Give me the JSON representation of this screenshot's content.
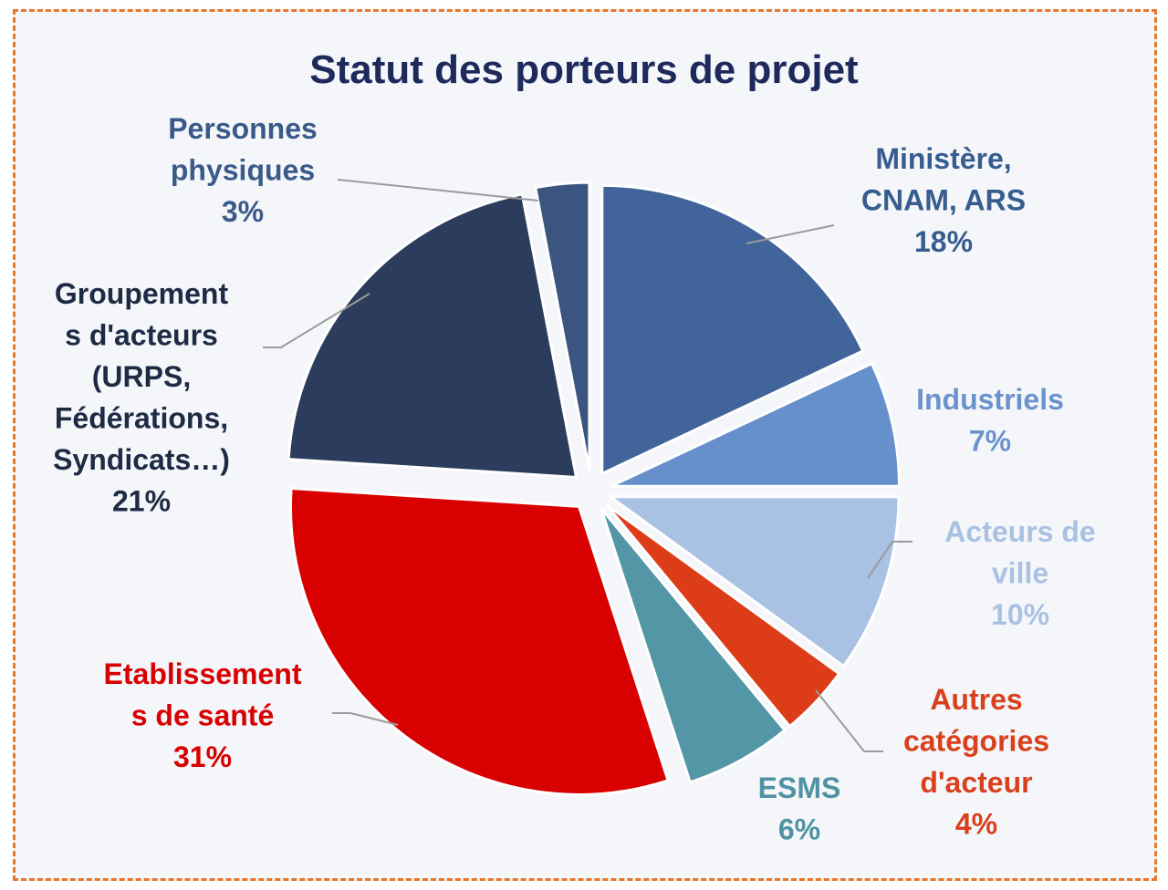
{
  "chart_data": {
    "type": "pie",
    "title": "Statut des porteurs de projet",
    "slices": [
      {
        "label_lines": [
          "Ministère,",
          "CNAM, ARS"
        ],
        "percent_label": "18%",
        "value": 18,
        "color": "#41649a",
        "label_color": "#375d8f"
      },
      {
        "label_lines": [
          "Industriels"
        ],
        "percent_label": "7%",
        "value": 7,
        "color": "#6690cc",
        "label_color": "#6a93cd"
      },
      {
        "label_lines": [
          "Acteurs de",
          "ville"
        ],
        "percent_label": "10%",
        "value": 10,
        "color": "#a9c2e3",
        "label_color": "#a9c2e3"
      },
      {
        "label_lines": [
          "Autres",
          "catégories",
          "d'acteur"
        ],
        "percent_label": "4%",
        "value": 4,
        "color": "#dd3c18",
        "label_color": "#d9401b"
      },
      {
        "label_lines": [
          "ESMS"
        ],
        "percent_label": "6%",
        "value": 6,
        "color": "#5396a6",
        "label_color": "#4f93a3"
      },
      {
        "label_lines": [
          "Etablissement",
          "s de santé"
        ],
        "percent_label": "31%",
        "value": 31,
        "color": "#d80000",
        "label_color": "#d80000"
      },
      {
        "label_lines": [
          "Groupement",
          "s d'acteurs",
          "(URPS,",
          "Fédérations,",
          "Syndicats…)"
        ],
        "percent_label": "21%",
        "value": 21,
        "color": "#2c3c5c",
        "label_color": "#1e2b45"
      },
      {
        "label_lines": [
          "Personnes",
          "physiques"
        ],
        "percent_label": "3%",
        "value": 3,
        "color": "#3b5580",
        "label_color": "#3a5a8a"
      }
    ]
  },
  "colors": {
    "border": "#e8772a",
    "background": "#f5f6fa",
    "title": "#1f2a5c",
    "leader": "#9a9a9a"
  }
}
